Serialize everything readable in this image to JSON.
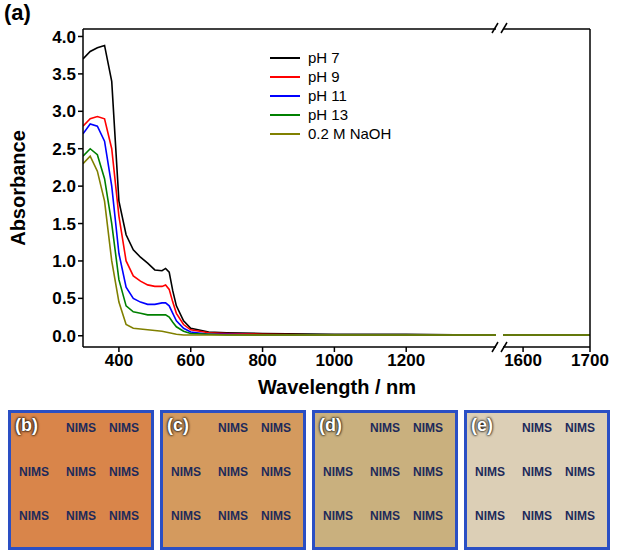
{
  "chart_data": [
    {
      "type": "line",
      "title": "(a)",
      "x_label": "Wavelength / nm",
      "y_label": "Absorbance",
      "x": [
        300,
        320,
        340,
        360,
        380,
        400,
        420,
        440,
        460,
        480,
        500,
        520,
        530,
        540,
        550,
        560,
        580,
        600,
        650,
        700,
        800,
        1000,
        1200,
        1400,
        1450
      ],
      "series": [
        {
          "name": "pH 7",
          "color": "#000000",
          "values": [
            3.7,
            3.8,
            3.85,
            3.88,
            3.4,
            1.8,
            1.35,
            1.15,
            1.05,
            0.97,
            0.88,
            0.87,
            0.9,
            0.85,
            0.6,
            0.4,
            0.2,
            0.1,
            0.05,
            0.04,
            0.03,
            0.02,
            0.02,
            0.01,
            0.01
          ]
        },
        {
          "name": "pH 9",
          "color": "#ff0000",
          "values": [
            2.8,
            2.9,
            2.93,
            2.9,
            2.5,
            1.6,
            1.0,
            0.8,
            0.73,
            0.68,
            0.66,
            0.66,
            0.68,
            0.62,
            0.45,
            0.3,
            0.15,
            0.08,
            0.04,
            0.03,
            0.02,
            0.01,
            0.01,
            0.01,
            0.01
          ]
        },
        {
          "name": "pH 11",
          "color": "#0000ff",
          "values": [
            2.7,
            2.83,
            2.8,
            2.6,
            2.0,
            1.1,
            0.65,
            0.5,
            0.45,
            0.42,
            0.42,
            0.44,
            0.44,
            0.4,
            0.3,
            0.2,
            0.1,
            0.05,
            0.02,
            0.02,
            0.01,
            0.01,
            0.01,
            0.01,
            0.01
          ]
        },
        {
          "name": "pH 13",
          "color": "#008000",
          "values": [
            2.4,
            2.5,
            2.42,
            2.1,
            1.5,
            0.75,
            0.4,
            0.32,
            0.3,
            0.28,
            0.28,
            0.28,
            0.28,
            0.25,
            0.18,
            0.12,
            0.06,
            0.03,
            0.02,
            0.01,
            0.01,
            0.01,
            0.01,
            0.01,
            0.01
          ]
        },
        {
          "name": "0.2 M NaOH",
          "color": "#808000",
          "values": [
            2.3,
            2.4,
            2.2,
            1.8,
            1.0,
            0.45,
            0.15,
            0.1,
            0.09,
            0.08,
            0.07,
            0.06,
            0.05,
            0.04,
            0.03,
            0.02,
            0.01,
            0.01,
            0.01,
            0.01,
            0.01,
            0.01,
            0.01,
            0.01,
            0.01
          ]
        }
      ],
      "xlim": [
        300,
        1450
      ],
      "xticks": [
        400,
        600,
        800,
        1000,
        1200
      ],
      "ylim": [
        -0.15,
        4.1
      ],
      "yticks": [
        {
          "value": 0,
          "label": "0.0"
        },
        0.5,
        {
          "value": 1,
          "label": "1.0"
        },
        1.5,
        {
          "value": 2,
          "label": "2.0"
        },
        2.5,
        {
          "value": 3,
          "label": "3.0"
        },
        3.5,
        {
          "value": 4,
          "label": "4.0"
        }
      ],
      "legend": "top"
    },
    {
      "type": "line",
      "x": [
        1570,
        1600,
        1650,
        1700
      ],
      "series": [
        {
          "name": "pH 7",
          "color": "#000000",
          "values": [
            0.01,
            0.01,
            0.01,
            0.01
          ]
        },
        {
          "name": "pH 9",
          "color": "#ff0000",
          "values": [
            0.01,
            0.01,
            0.01,
            0.01
          ]
        },
        {
          "name": "pH 11",
          "color": "#0000ff",
          "values": [
            0.01,
            0.01,
            0.01,
            0.01
          ]
        },
        {
          "name": "pH 13",
          "color": "#008000",
          "values": [
            0.01,
            0.01,
            0.01,
            0.01
          ]
        },
        {
          "name": "0.2 M NaOH",
          "color": "#808000",
          "values": [
            0.01,
            0.01,
            0.01,
            0.01
          ]
        }
      ],
      "xlim": [
        1570,
        1700
      ],
      "xticks": [
        1600,
        1700
      ],
      "ylim": [
        -0.15,
        4.1
      ],
      "tick_labels": "x"
    }
  ],
  "photos": [
    {
      "label": "(b)",
      "color": "#d9854a"
    },
    {
      "label": "(c)",
      "color": "#d49a5e"
    },
    {
      "label": "(d)",
      "color": "#c9b07e"
    },
    {
      "label": "(e)",
      "color": "#dccfb6"
    }
  ],
  "photo_text": "NIMS"
}
